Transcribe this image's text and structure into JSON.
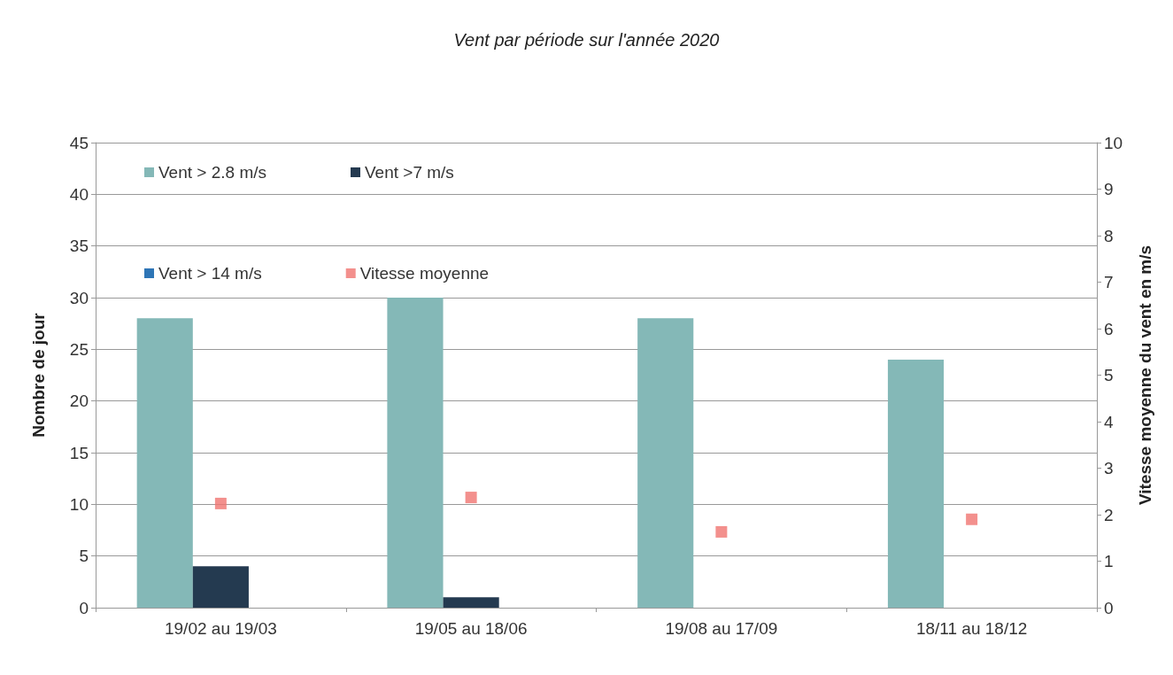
{
  "chart_data": {
    "type": "bar",
    "title": "Vent par période sur l'année 2020",
    "ylabel": "Nombre de jour",
    "y2label": "Vitesse moyenne du vent en m/s",
    "categories": [
      "19/02 au 19/03",
      "19/05 au 18/06",
      "19/08 au 17/09",
      "18/11 au 18/12"
    ],
    "series": [
      {
        "name": "Vent > 2.8 m/s",
        "color": "#84b8b7",
        "values": [
          28,
          30,
          28,
          24
        ]
      },
      {
        "name": "Vent >7 m/s",
        "color": "#243a50",
        "values": [
          4,
          1,
          0,
          0
        ]
      },
      {
        "name": "Vent > 14 m/s",
        "color": "#2e75b6",
        "values": [
          0,
          0,
          0,
          0
        ]
      },
      {
        "name": "Vitesse moyenne",
        "type": "scatter",
        "axis": "y2",
        "marker": "square",
        "color": "#f07470",
        "values": [
          2.24,
          2.37,
          1.63,
          1.9
        ]
      }
    ],
    "ylim": [
      0,
      45
    ],
    "yticks": [
      0,
      5,
      10,
      15,
      20,
      25,
      30,
      35,
      40,
      45
    ],
    "y2lim": [
      0,
      10
    ],
    "y2ticks": [
      0,
      1,
      2,
      3,
      4,
      5,
      6,
      7,
      8,
      9,
      10
    ],
    "grid": "y",
    "legend": "top left"
  }
}
